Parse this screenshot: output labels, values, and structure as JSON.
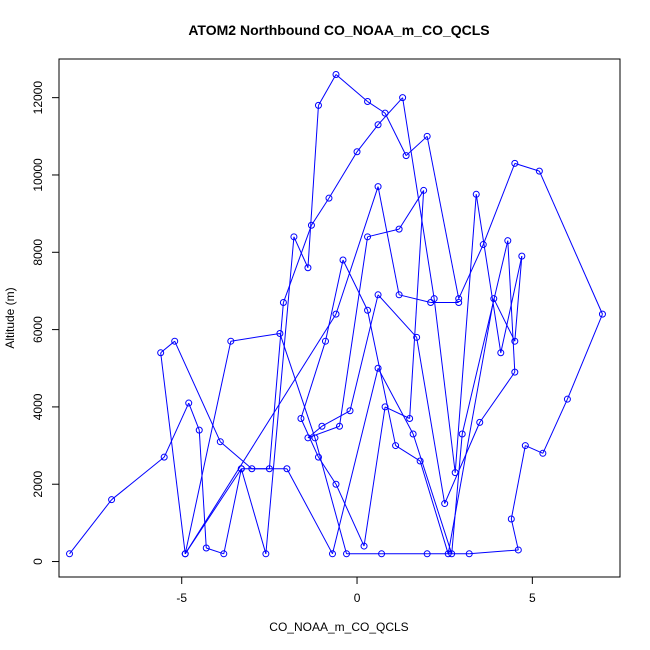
{
  "chart_data": {
    "type": "scatter",
    "title": "ATOM2 Northbound CO_NOAA_m_CO_QCLS",
    "xlabel": "CO_NOAA_m_CO_QCLS",
    "ylabel": "Altitude (m)",
    "xlim": [
      -8.5,
      7.5
    ],
    "ylim": [
      -400,
      13000
    ],
    "xticks": [
      -5,
      0,
      5
    ],
    "yticks": [
      0,
      2000,
      4000,
      6000,
      8000,
      10000,
      12000
    ],
    "connect_points": true,
    "marker": "open-circle",
    "color": "#0000ff",
    "grid": false,
    "legend": "none",
    "x": [
      -8.2,
      -7.0,
      -5.5,
      -4.8,
      -4.5,
      -4.3,
      -3.8,
      -3.3,
      -2.6,
      -1.8,
      -1.4,
      -1.1,
      -0.6,
      0.3,
      0.8,
      1.4,
      2.0,
      2.9,
      3.6,
      4.5,
      5.2,
      7.0,
      6.0,
      5.3,
      4.8,
      4.4,
      4.6,
      3.2,
      2.0,
      0.7,
      -0.3,
      -1.2,
      -2.2,
      -3.6,
      -4.9,
      -5.6,
      -5.2,
      -3.9,
      -3.0,
      -2.5,
      -2.1,
      -1.3,
      -0.8,
      0.0,
      0.6,
      1.3,
      2.2,
      2.8,
      3.4,
      4.1,
      4.7,
      4.5,
      3.9,
      2.6,
      1.8,
      1.1,
      0.3,
      -0.4,
      -0.9,
      -1.6,
      -1.1,
      -0.6,
      0.2,
      0.8,
      1.5,
      1.9,
      1.2,
      0.3,
      -0.5,
      -1.4,
      -1.0,
      -0.2,
      0.6,
      1.7,
      2.5,
      3.5,
      4.5,
      4.3,
      3.0,
      2.7,
      1.6,
      0.6,
      -0.7,
      -2.0,
      -3.3,
      -4.9,
      -0.6,
      0.6,
      1.2,
      2.1,
      2.9
    ],
    "y": [
      200,
      1600,
      2700,
      4100,
      3400,
      350,
      200,
      2400,
      200,
      8400,
      7600,
      11800,
      12600,
      11900,
      11600,
      10500,
      11000,
      6800,
      8200,
      10300,
      10100,
      6400,
      4200,
      2800,
      3000,
      1100,
      300,
      200,
      200,
      200,
      200,
      3200,
      5900,
      5700,
      200,
      5400,
      5700,
      3100,
      2400,
      2400,
      6700,
      8700,
      9400,
      10600,
      11300,
      12000,
      6800,
      2300,
      9500,
      5400,
      7900,
      5700,
      6800,
      200,
      2600,
      3000,
      6500,
      7800,
      5700,
      3700,
      2700,
      2000,
      400,
      4000,
      3700,
      9600,
      8600,
      8400,
      3500,
      3200,
      3500,
      3900,
      6900,
      5800,
      1500,
      3600,
      4900,
      8300,
      3300,
      200,
      3300,
      5000,
      200,
      2400,
      2400,
      200,
      6400,
      9700,
      6900,
      6700,
      6700
    ]
  }
}
